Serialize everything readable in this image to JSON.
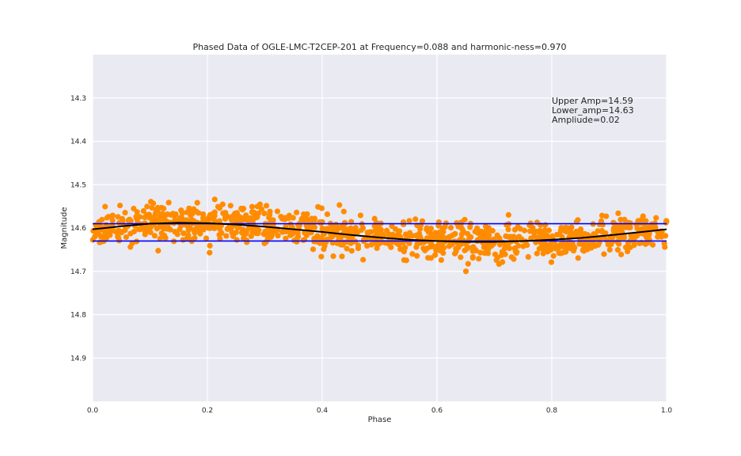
{
  "chart_data": {
    "type": "scatter",
    "title": "Phased Data of OGLE-LMC-T2CEP-201 at Frequency=0.088 and harmonic-ness=0.970",
    "xlabel": "Phase",
    "ylabel": "Magnitude",
    "xlim": [
      0.0,
      1.0
    ],
    "ylim": [
      14.2,
      15.0
    ],
    "y_inverted": true,
    "grid": true,
    "x_ticks": [
      "0.0",
      "0.2",
      "0.4",
      "0.6",
      "0.8",
      "1.0"
    ],
    "x_tick_values": [
      0.0,
      0.2,
      0.4,
      0.6,
      0.8,
      1.0
    ],
    "y_ticks": [
      "14.3",
      "14.4",
      "14.5",
      "14.6",
      "14.7",
      "14.8",
      "14.9"
    ],
    "y_tick_values": [
      14.3,
      14.4,
      14.5,
      14.6,
      14.7,
      14.8,
      14.9
    ],
    "annotation": {
      "upper": "Upper Amp=14.59",
      "lower": "Lower_amp=14.63",
      "amplitude": "Ampliude=0.02"
    },
    "upper_amp": 14.59,
    "lower_amp": 14.63,
    "fit_curve": {
      "x": [
        0.0,
        0.05,
        0.1,
        0.15,
        0.2,
        0.25,
        0.3,
        0.35,
        0.4,
        0.45,
        0.5,
        0.55,
        0.6,
        0.65,
        0.7,
        0.75,
        0.8,
        0.85,
        0.9,
        0.95,
        1.0
      ],
      "y": [
        14.603,
        14.596,
        14.59,
        14.588,
        14.589,
        14.592,
        14.597,
        14.603,
        14.609,
        14.616,
        14.622,
        14.627,
        14.63,
        14.632,
        14.632,
        14.63,
        14.627,
        14.623,
        14.617,
        14.61,
        14.603
      ]
    },
    "scatter_summary": {
      "n_points": 1100,
      "x_range": [
        0.0,
        1.0
      ],
      "y_range": [
        14.53,
        14.7
      ],
      "note_values": "points scattered around fit curve with spread ~0.04 mag"
    },
    "colors": {
      "background": "#eaeaf2",
      "grid": "#ffffff",
      "points": "#ff8c00",
      "fit": "#000000",
      "amp_lines": "#0000ff"
    }
  }
}
